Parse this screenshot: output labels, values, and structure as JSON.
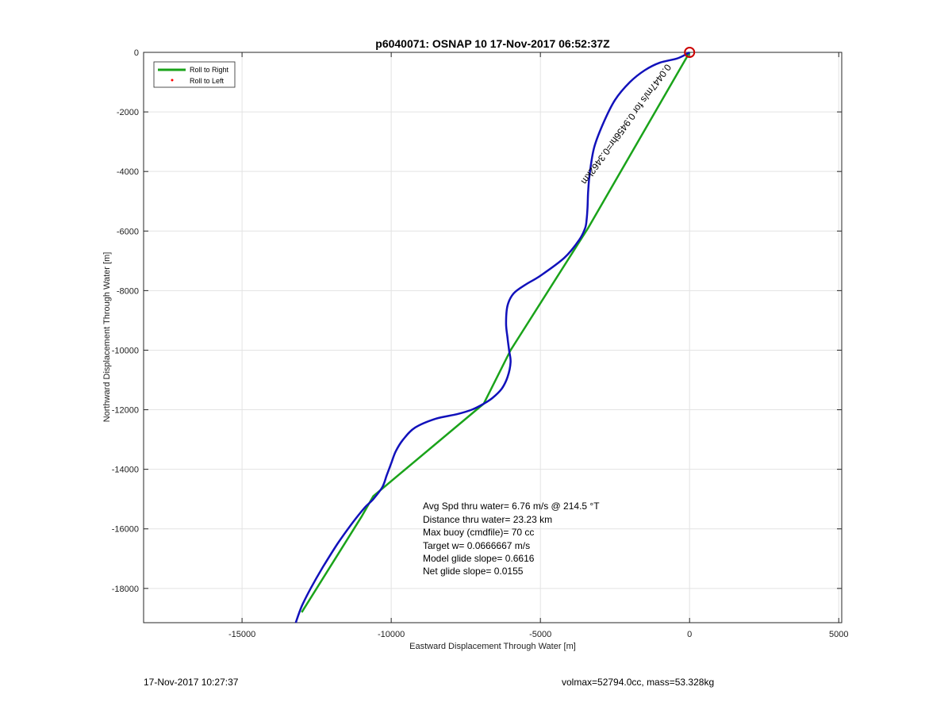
{
  "chart_data": {
    "type": "line",
    "title": "p6040071: OSNAP 10 17-Nov-2017 06:52:37Z",
    "xlabel": "Eastward Displacement Through Water [m]",
    "ylabel": "Northward Displacement Through Water [m]",
    "xlim": [
      -18300,
      5100
    ],
    "ylim": [
      -19150,
      0
    ],
    "xticks": [
      -15000,
      -10000,
      -5000,
      0,
      5000
    ],
    "xtick_labels": [
      "-15000",
      "-10000",
      "-5000",
      "0",
      "5000"
    ],
    "yticks": [
      0,
      -2000,
      -4000,
      -6000,
      -8000,
      -10000,
      -12000,
      -14000,
      -16000,
      -18000
    ],
    "ytick_labels": [
      "0",
      "-2000",
      "-4000",
      "-6000",
      "-8000",
      "-10000",
      "-12000",
      "-14000",
      "-16000",
      "-18000"
    ],
    "grid": true,
    "legend_position": "top-left",
    "legend": [
      {
        "label": "Roll to Right",
        "color": "#1aa31a",
        "marker": "line"
      },
      {
        "label": "Roll to Left",
        "color": "#ff0000",
        "marker": "dot"
      }
    ],
    "series": [
      {
        "name": "Roll to Right",
        "color": "#1aa31a",
        "x": [
          0,
          -3400,
          -6000,
          -6900,
          -10600,
          -11000,
          -13000
        ],
        "y": [
          0,
          -5900,
          -10000,
          -11800,
          -14900,
          -15600,
          -18800
        ]
      },
      {
        "color": "#1111bb",
        "x": [
          0,
          -400,
          -1000,
          -1500,
          -2000,
          -2500,
          -2900,
          -3200,
          -3350,
          -3400,
          -3420,
          -3450,
          -3500,
          -3700,
          -4200,
          -5000,
          -5500,
          -5900,
          -6100,
          -6150,
          -6100,
          -6050,
          -6000,
          -6100,
          -6300,
          -6600,
          -6900,
          -7300,
          -7800,
          -8500,
          -9200,
          -9600,
          -9850,
          -10000,
          -10150,
          -10300,
          -10600,
          -10900,
          -11300,
          -11800,
          -12300,
          -12700,
          -13000,
          -13200
        ],
        "y": [
          0,
          -200,
          -350,
          -600,
          -1000,
          -1600,
          -2400,
          -3200,
          -4100,
          -4700,
          -5200,
          -5600,
          -5900,
          -6300,
          -6900,
          -7500,
          -7800,
          -8100,
          -8500,
          -9100,
          -9600,
          -10000,
          -10400,
          -10900,
          -11300,
          -11600,
          -11800,
          -12000,
          -12150,
          -12300,
          -12600,
          -13000,
          -13400,
          -13800,
          -14200,
          -14600,
          -15000,
          -15300,
          -15800,
          -16500,
          -17300,
          -18000,
          -18600,
          -19150
        ]
      }
    ],
    "end_marker": {
      "x": 0,
      "y": 0,
      "color": "#cc0000"
    },
    "current_annotation": "0.0447m/s for 0.9456hr=0.3462km",
    "annotations": [
      "Avg Spd thru water=  6.76 m/s @ 214.5 °T",
      "Distance thru water= 23.23 km",
      "Max buoy (cmdfile)= 70 cc",
      "Target w= 0.0666667 m/s",
      "Model glide slope= 0.6616",
      "Net glide slope= 0.0155"
    ]
  },
  "footer": {
    "left": "17-Nov-2017 10:27:37",
    "right": "volmax=52794.0cc, mass=53.328kg"
  }
}
